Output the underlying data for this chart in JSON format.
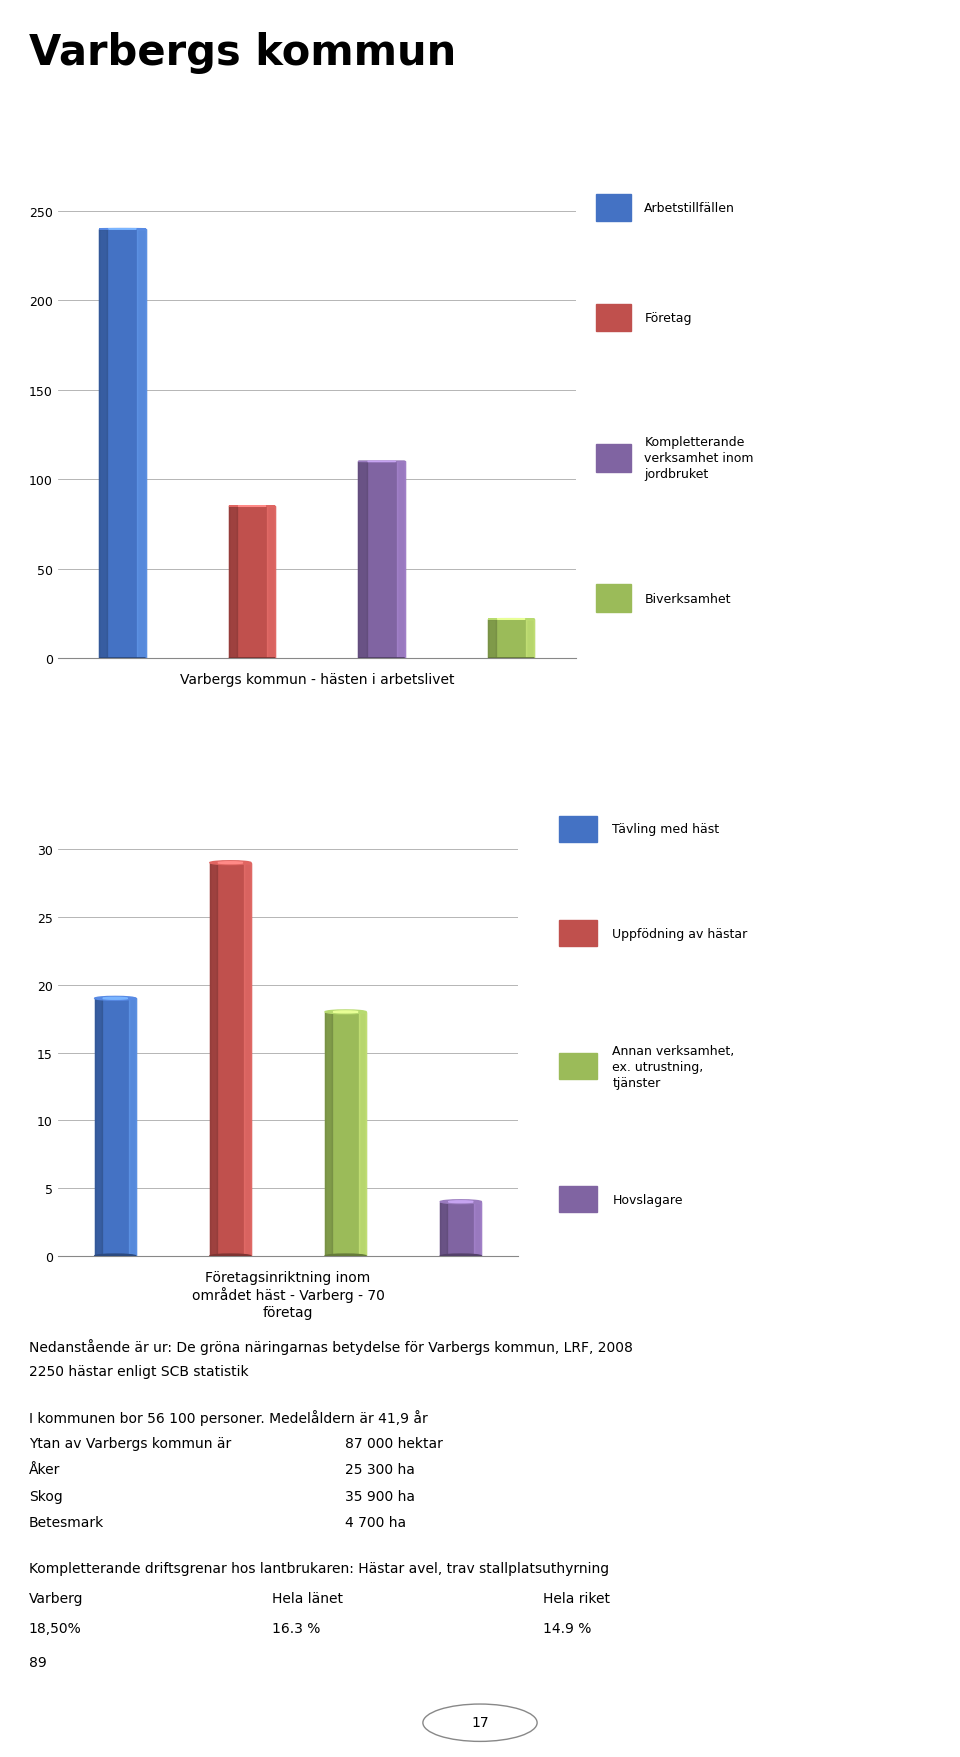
{
  "title": "Varbergs kommun",
  "chart1": {
    "xlabel": "Varbergs kommun - hästen i arbetslivet",
    "values": [
      240,
      85,
      110,
      22
    ],
    "colors": [
      "#4472C4",
      "#C0504D",
      "#8064A2",
      "#9BBB59"
    ],
    "legend_labels": [
      "Arbetstillfällen",
      "Företag",
      "Kompletterande\nverksamhet inom\njordbruket",
      "Biverksamhet"
    ],
    "ylim": [
      0,
      280
    ],
    "yticks": [
      0,
      50,
      100,
      150,
      200,
      250
    ]
  },
  "chart2": {
    "xlabel": "Företagsinriktning inom\nområdet häst - Varberg - 70\nföretag",
    "values": [
      19,
      29,
      18,
      4
    ],
    "colors": [
      "#4472C4",
      "#C0504D",
      "#9BBB59",
      "#8064A2"
    ],
    "legend_labels": [
      "Tävling med häst",
      "Uppfödning av hästar",
      "Annan verksamhet,\nex. utrustning,\ntjänster",
      "Hovslagare"
    ],
    "ylim": [
      0,
      35
    ],
    "yticks": [
      0,
      5,
      10,
      15,
      20,
      25,
      30
    ]
  },
  "background_color": "#FFFFFF"
}
